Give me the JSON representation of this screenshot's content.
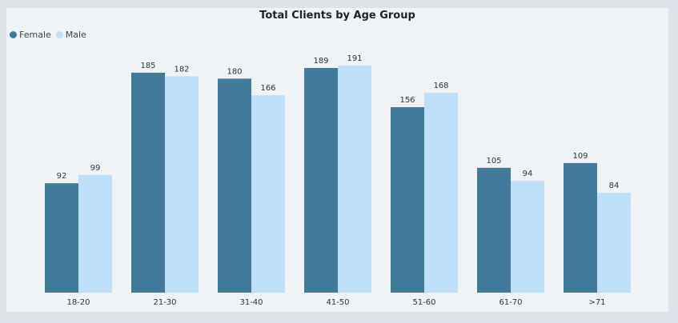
{
  "chart_data": {
    "type": "bar",
    "title": "Total Clients by Age Group",
    "categories": [
      "18-20",
      "21-30",
      "31-40",
      "41-50",
      "51-60",
      "61-70",
      ">71"
    ],
    "series": [
      {
        "name": "Female",
        "color": "#427a9b",
        "values": [
          92,
          185,
          180,
          189,
          156,
          105,
          109
        ]
      },
      {
        "name": "Male",
        "color": "#bde0f8",
        "values": [
          99,
          182,
          166,
          191,
          168,
          94,
          84
        ]
      }
    ],
    "ylim": [
      0,
      191
    ],
    "legend_position": "top-left",
    "grid": false
  }
}
